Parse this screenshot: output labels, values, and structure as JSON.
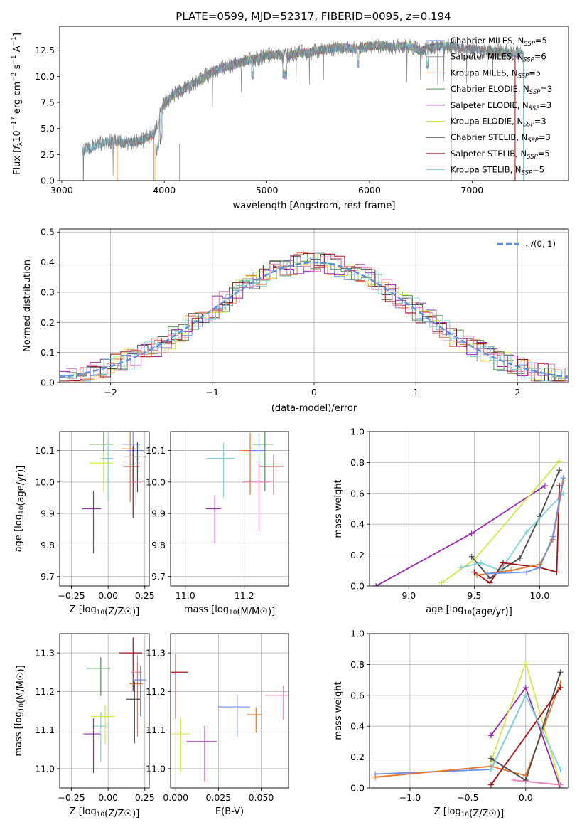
{
  "title": "PLATE=0599, MJD=52317, FIBERID=0095, z=0.194",
  "colors": {
    "miles_chabrier": "#6b8ee8",
    "miles_salpeter": "#9a9a9a",
    "miles_kroupa": "#e8752a",
    "elodie_chabrier": "#4f8f4f",
    "elodie_salpeter": "#9b27b0",
    "elodie_kroupa": "#d4e84a",
    "stelib_chabrier": "#4d4d4d",
    "stelib_salpeter": "#a50f15",
    "stelib_kroupa": "#7dd3d8",
    "pink": "#e87db4",
    "normal": "#5a8fd6"
  },
  "panels": {
    "spectrum": {
      "xlabel": "wavelength [Angstrom, rest frame]",
      "ylabel": "Flux [f_λ10^-17 erg cm^-2 s^-1 A^-1]",
      "xticks": [
        "3000",
        "4000",
        "5000",
        "6000",
        "7000"
      ],
      "yticks": [
        "0.0",
        "2.5",
        "5.0",
        "7.5",
        "10.0",
        "12.5"
      ],
      "legend": [
        {
          "label": "Chabrier MILES, N_SSP=5",
          "color": "#6b8ee8"
        },
        {
          "label": "Salpeter MILES, N_SSP=6",
          "color": "#9a9a9a"
        },
        {
          "label": "Kroupa MILES, N_SSP=5",
          "color": "#e8752a"
        },
        {
          "label": "Chabrier ELODIE, N_SSP=3",
          "color": "#4f8f4f"
        },
        {
          "label": "Salpeter ELODIE, N_SSP=3",
          "color": "#9b27b0"
        },
        {
          "label": "Kroupa ELODIE, N_SSP=3",
          "color": "#d4e84a"
        },
        {
          "label": "Chabrier STELIB, N_SSP=3",
          "color": "#4d4d4d"
        },
        {
          "label": "Salpeter STELIB, N_SSP=5",
          "color": "#a50f15"
        },
        {
          "label": "Kroupa STELIB, N_SSP=5",
          "color": "#7dd3d8"
        }
      ]
    },
    "histogram": {
      "xlabel": "(data-model)/error",
      "ylabel": "Normed distribution",
      "xticks": [
        "−2",
        "−1",
        "0",
        "1",
        "2"
      ],
      "yticks": [
        "0.0",
        "0.1",
        "0.2",
        "0.3",
        "0.4",
        "0.5"
      ],
      "legend": "N(0,1)"
    },
    "age_Z": {
      "xlabel": "Z [log10(Z/Z☉)]",
      "ylabel": "age  [log10(age/yr)]",
      "xticks": [
        "−0.25",
        "0.00",
        "0.25"
      ],
      "yticks": [
        "9.7",
        "9.8",
        "9.9",
        "10.0",
        "10.1"
      ]
    },
    "age_mass": {
      "xlabel": "mass [log10(M/M☉)]",
      "xticks": [
        "11.0",
        "11.2"
      ],
      "yticks": [
        "9.7",
        "9.8",
        "9.9",
        "10.0",
        "10.1"
      ]
    },
    "mw_age": {
      "xlabel": "age  [log10(age/yr)]",
      "ylabel": "mass weight",
      "xticks": [
        "9.0",
        "9.5",
        "10.0"
      ],
      "yticks": [
        "0.0",
        "0.2",
        "0.4",
        "0.6",
        "0.8",
        "1.0"
      ]
    },
    "mass_Z": {
      "xlabel": "Z [log10(Z/Z☉)]",
      "ylabel": "mass [log10(M/M☉)]",
      "xticks": [
        "−0.25",
        "0.00",
        "0.25"
      ],
      "yticks": [
        "11.0",
        "11.1",
        "11.2",
        "11.3"
      ]
    },
    "mass_ebv": {
      "xlabel": "E(B-V)",
      "xticks": [
        "0.000",
        "0.025",
        "0.050"
      ],
      "yticks": [
        "11.0",
        "11.1",
        "11.2",
        "11.3"
      ]
    },
    "mw_Z": {
      "xlabel": "Z [log10(Z/Z☉)]",
      "ylabel": "mass weight",
      "xticks": [
        "−1.0",
        "−0.5",
        "0.0"
      ],
      "yticks": [
        "0.0",
        "0.2",
        "0.4",
        "0.6",
        "0.8",
        "1.0"
      ]
    }
  },
  "chart_data": [
    {
      "type": "line",
      "title": "PLATE=0599, MJD=52317, FIBERID=0095, z=0.194",
      "xlabel": "wavelength [Angstrom, rest frame]",
      "ylabel": "Flux [f_λ10^-17 erg cm^-2 s^-1 A^-1]",
      "xlim": [
        2980,
        7940
      ],
      "ylim": [
        0,
        14.8
      ],
      "x": [
        3200,
        3300,
        3400,
        3500,
        3600,
        3700,
        3800,
        3900,
        4000,
        4100,
        4200,
        4300,
        4400,
        4500,
        4600,
        4700,
        4800,
        4900,
        5000,
        5100,
        5200,
        5300,
        5400,
        5500,
        5600,
        5700,
        5800,
        5900,
        6000,
        6100,
        6200,
        6300,
        6400,
        6500,
        6600,
        6700,
        6800,
        6900,
        7000,
        7100,
        7200,
        7300,
        7400,
        7500
      ],
      "series": [
        {
          "values": [
            2.8,
            3.2,
            3.6,
            3.8,
            3.6,
            3.7,
            3.9,
            4.6,
            7.5,
            8.3,
            8.8,
            9.4,
            10.0,
            10.6,
            10.9,
            11.2,
            11.5,
            11.7,
            12.0,
            12.1,
            11.9,
            12.3,
            12.2,
            12.5,
            12.6,
            12.8,
            12.7,
            12.6,
            12.9,
            13.0,
            12.8,
            12.9,
            12.9,
            12.4,
            12.8,
            12.9,
            12.9,
            12.7,
            12.6,
            12.5,
            12.4,
            12.3,
            12.2,
            12.1
          ]
        }
      ]
    },
    {
      "type": "bar",
      "xlabel": "(data-model)/error",
      "ylabel": "Normed distribution",
      "xlim": [
        -2.5,
        2.5
      ],
      "ylim": [
        0,
        0.51
      ],
      "bin_edges": [
        -2.5,
        -2.3,
        -2.1,
        -1.9,
        -1.7,
        -1.5,
        -1.3,
        -1.1,
        -0.9,
        -0.7,
        -0.5,
        -0.3,
        -0.1,
        0.1,
        0.3,
        0.5,
        0.7,
        0.9,
        1.1,
        1.3,
        1.5,
        1.7,
        1.9,
        2.1,
        2.3,
        2.5
      ],
      "series": [
        {
          "values": [
            0.02,
            0.03,
            0.05,
            0.07,
            0.1,
            0.14,
            0.2,
            0.27,
            0.33,
            0.37,
            0.38,
            0.41,
            0.44,
            0.43,
            0.38,
            0.36,
            0.29,
            0.22,
            0.17,
            0.12,
            0.07,
            0.05,
            0.04,
            0.03,
            0.02
          ]
        }
      ],
      "reference": {
        "name": "N(0,1)",
        "mean": 0,
        "sigma": 1
      }
    },
    {
      "type": "scatter",
      "xlabel": "Z [log10(Z/Z☉)]",
      "ylabel": "age  [log10(age/yr)]",
      "xlim": [
        -0.33,
        0.28
      ],
      "ylim": [
        9.67,
        10.16
      ],
      "points": [
        {
          "x": 0.17,
          "y": 10.12,
          "c": "miles_chabrier"
        },
        {
          "x": 0.15,
          "y": 10.105,
          "c": "miles_kroupa"
        },
        {
          "x": 0.2,
          "y": 10.1,
          "c": "miles_chabrier"
        },
        {
          "x": -0.03,
          "y": 10.12,
          "c": "elodie_chabrier"
        },
        {
          "x": -0.03,
          "y": 10.06,
          "c": "elodie_kroupa"
        },
        {
          "x": -0.1,
          "y": 9.915,
          "c": "elodie_salpeter"
        },
        {
          "x": 0.0,
          "y": 10.075,
          "c": "stelib_kroupa"
        },
        {
          "x": 0.17,
          "y": 10.05,
          "c": "stelib_salpeter"
        },
        {
          "x": 0.2,
          "y": 10.08,
          "c": "stelib_chabrier"
        },
        {
          "x": 0.19,
          "y": 10.0,
          "c": "pink"
        }
      ]
    },
    {
      "type": "scatter",
      "xlabel": "mass [log10(M/M☉)]",
      "xlim": [
        10.95,
        11.35
      ],
      "ylim": [
        9.67,
        10.16
      ],
      "points": [
        {
          "x": 11.27,
          "y": 10.12,
          "c": "elodie_chabrier"
        },
        {
          "x": 11.22,
          "y": 10.1,
          "c": "miles_kroupa"
        },
        {
          "x": 11.25,
          "y": 10.1,
          "c": "miles_chabrier"
        },
        {
          "x": 11.13,
          "y": 10.075,
          "c": "stelib_kroupa"
        },
        {
          "x": 11.3,
          "y": 10.05,
          "c": "stelib_salpeter"
        },
        {
          "x": 11.1,
          "y": 9.915,
          "c": "elodie_salpeter"
        },
        {
          "x": 11.25,
          "y": 10.0,
          "c": "pink"
        }
      ]
    },
    {
      "type": "line",
      "xlabel": "age  [log10(age/yr)]",
      "ylabel": "mass weight",
      "xlim": [
        8.7,
        10.22
      ],
      "ylim": [
        0,
        1
      ],
      "series": [
        {
          "c": "elodie_salpeter",
          "x": [
            8.75,
            9.48,
            10.04
          ],
          "y": [
            0.0,
            0.34,
            0.65
          ]
        },
        {
          "c": "elodie_kroupa",
          "x": [
            9.25,
            9.5,
            10.15
          ],
          "y": [
            0.02,
            0.17,
            0.81
          ]
        },
        {
          "c": "stelib_chabrier",
          "x": [
            9.48,
            9.62,
            9.7,
            9.85,
            10.0,
            10.15
          ],
          "y": [
            0.19,
            0.05,
            0.1,
            0.18,
            0.45,
            0.75
          ]
        },
        {
          "c": "stelib_kroupa",
          "x": [
            9.4,
            9.55,
            9.7,
            9.9,
            10.18
          ],
          "y": [
            0.12,
            0.15,
            0.1,
            0.35,
            0.6
          ]
        },
        {
          "c": "stelib_salpeter",
          "x": [
            9.5,
            9.62,
            9.72,
            10.0,
            10.13,
            10.15
          ],
          "y": [
            0.09,
            0.02,
            0.15,
            0.12,
            0.09,
            0.65
          ]
        },
        {
          "c": "miles_kroupa",
          "x": [
            9.52,
            9.78,
            10.0,
            10.1,
            10.18
          ],
          "y": [
            0.07,
            0.1,
            0.14,
            0.3,
            0.68
          ]
        },
        {
          "c": "miles_chabrier",
          "x": [
            9.6,
            9.9,
            10.0,
            10.1,
            10.18
          ],
          "y": [
            0.08,
            0.09,
            0.12,
            0.32,
            0.7
          ]
        }
      ]
    },
    {
      "type": "scatter",
      "xlabel": "Z [log10(Z/Z☉)]",
      "ylabel": "mass [log10(M/M☉)]",
      "xlim": [
        -0.33,
        0.28
      ],
      "ylim": [
        10.95,
        11.35
      ],
      "points": [
        {
          "x": 0.17,
          "y": 11.3,
          "c": "stelib_salpeter"
        },
        {
          "x": -0.05,
          "y": 11.26,
          "c": "elodie_chabrier"
        },
        {
          "x": 0.2,
          "y": 11.25,
          "c": "pink"
        },
        {
          "x": 0.22,
          "y": 11.23,
          "c": "miles_chabrier"
        },
        {
          "x": 0.2,
          "y": 11.22,
          "c": "miles_kroupa"
        },
        {
          "x": 0.18,
          "y": 11.18,
          "c": "stelib_chabrier"
        },
        {
          "x": -0.02,
          "y": 11.135,
          "c": "elodie_kroupa"
        },
        {
          "x": -0.05,
          "y": 11.11,
          "c": "stelib_kroupa"
        },
        {
          "x": -0.1,
          "y": 11.09,
          "c": "elodie_salpeter"
        }
      ]
    },
    {
      "type": "scatter",
      "xlabel": "E(B-V)",
      "xlim": [
        -0.003,
        0.066
      ],
      "ylim": [
        10.95,
        11.35
      ],
      "points": [
        {
          "x": 0.0,
          "y": 11.25,
          "c": "stelib_salpeter"
        },
        {
          "x": 0.003,
          "y": 11.09,
          "c": "elodie_kroupa"
        },
        {
          "x": 0.017,
          "y": 11.07,
          "c": "elodie_salpeter"
        },
        {
          "x": 0.036,
          "y": 11.16,
          "c": "miles_chabrier"
        },
        {
          "x": 0.047,
          "y": 11.14,
          "c": "miles_kroupa"
        },
        {
          "x": 0.063,
          "y": 11.19,
          "c": "pink"
        }
      ]
    },
    {
      "type": "line",
      "xlabel": "Z [log10(Z/Z☉)]",
      "ylabel": "mass weight",
      "xlim": [
        -1.35,
        0.37
      ],
      "ylim": [
        0,
        1
      ],
      "series": [
        {
          "c": "miles_chabrier",
          "x": [
            -1.3,
            -0.3,
            0.0
          ],
          "y": [
            0.09,
            0.12,
            0.6
          ]
        },
        {
          "c": "miles_kroupa",
          "x": [
            -1.3,
            -0.3,
            0.0,
            0.3
          ],
          "y": [
            0.07,
            0.14,
            0.08,
            0.68
          ]
        },
        {
          "c": "elodie_salpeter",
          "x": [
            -0.3,
            0.0,
            0.3
          ],
          "y": [
            0.34,
            0.65,
            0.0
          ]
        },
        {
          "c": "elodie_kroupa",
          "x": [
            -0.3,
            0.0,
            0.3
          ],
          "y": [
            0.17,
            0.81,
            0.02
          ]
        },
        {
          "c": "stelib_chabrier",
          "x": [
            -0.3,
            0.0,
            0.3
          ],
          "y": [
            0.19,
            0.05,
            0.75
          ]
        },
        {
          "c": "stelib_salpeter",
          "x": [
            -0.3,
            0.3
          ],
          "y": [
            0.02,
            0.65
          ]
        },
        {
          "c": "stelib_kroupa",
          "x": [
            -0.3,
            0.0,
            0.3
          ],
          "y": [
            0.12,
            0.6,
            0.12
          ]
        },
        {
          "c": "pink",
          "x": [
            -0.1,
            0.3
          ],
          "y": [
            0.05,
            0.02
          ]
        }
      ]
    }
  ]
}
